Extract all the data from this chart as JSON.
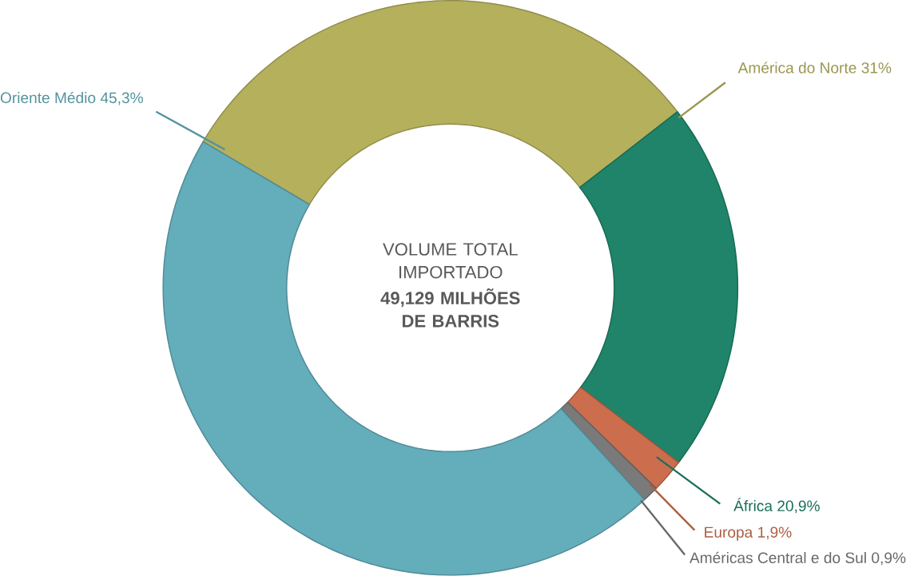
{
  "chart_data": {
    "type": "donut",
    "title": "VOLUME TOTAL IMPORTADO",
    "subtitle": "49,129 MILHÕES DE BARRIS",
    "categories": [
      "América do Norte",
      "África",
      "Europa",
      "Américas Central e do Sul",
      "Oriente Médio"
    ],
    "values": [
      31,
      20.9,
      1.9,
      0.9,
      45.3
    ],
    "value_labels": [
      "31%",
      "20,9%",
      "1,9%",
      "0,9%",
      "45,3%"
    ],
    "colors": [
      "#b5b05c",
      "#1f8469",
      "#cc6e4d",
      "#7a7a7a",
      "#64adbb"
    ]
  }
}
